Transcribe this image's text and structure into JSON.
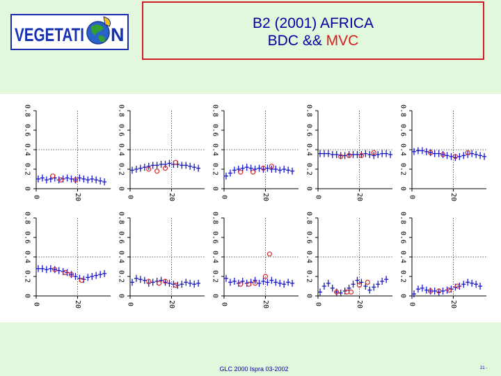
{
  "header": {
    "title_line1": "B2 (2001) AFRICA",
    "title_line2_prefix": "BDC && ",
    "title_line2_accent": "MVC",
    "logo_text_left": "VEGETATI",
    "logo_text_right": "N"
  },
  "footer": {
    "text": "GLC 2000 Ispra 03-2002",
    "page": "21 -"
  },
  "colors": {
    "bdc": "#1515c8",
    "mvc": "#d42a2a",
    "accent": "#d21a2a",
    "text": "#0000a0"
  },
  "chart_data": {
    "type": "scatter",
    "layout": "2 rows x 5 panels",
    "xlim": [
      0,
      36
    ],
    "ylim": [
      0,
      0.8
    ],
    "xticks": [
      "0",
      "20"
    ],
    "yticks": [
      "0",
      "0.2",
      "0.4",
      "0.6",
      "0.8"
    ],
    "vline_x": 20,
    "hline_y": 0.4,
    "series_names": [
      "BDC",
      "MVC"
    ],
    "panels": [
      {
        "bdc_x": [
          1,
          3,
          5,
          7,
          9,
          11,
          13,
          15,
          17,
          19,
          21,
          23,
          25,
          27,
          29,
          31,
          33
        ],
        "bdc_y": [
          0.1,
          0.11,
          0.09,
          0.1,
          0.11,
          0.09,
          0.1,
          0.11,
          0.1,
          0.09,
          0.11,
          0.1,
          0.09,
          0.1,
          0.09,
          0.08,
          0.07
        ],
        "mvc_x": [
          8,
          12,
          19
        ],
        "mvc_y": [
          0.13,
          0.09,
          0.09
        ]
      },
      {
        "bdc_x": [
          1,
          3,
          5,
          7,
          9,
          11,
          13,
          15,
          17,
          19,
          21,
          23,
          25,
          27,
          29,
          31,
          33
        ],
        "bdc_y": [
          0.19,
          0.2,
          0.21,
          0.22,
          0.23,
          0.24,
          0.24,
          0.25,
          0.25,
          0.26,
          0.25,
          0.25,
          0.24,
          0.24,
          0.23,
          0.22,
          0.21
        ],
        "mvc_x": [
          9,
          13,
          17,
          22
        ],
        "mvc_y": [
          0.2,
          0.18,
          0.21,
          0.27
        ]
      },
      {
        "bdc_x": [
          1,
          3,
          5,
          7,
          9,
          11,
          13,
          15,
          17,
          19,
          21,
          23,
          25,
          27,
          29,
          31,
          33
        ],
        "bdc_y": [
          0.13,
          0.16,
          0.19,
          0.2,
          0.21,
          0.22,
          0.21,
          0.2,
          0.21,
          0.2,
          0.21,
          0.2,
          0.2,
          0.19,
          0.2,
          0.19,
          0.18
        ],
        "mvc_x": [
          8,
          14,
          19,
          23
        ],
        "mvc_y": [
          0.17,
          0.17,
          0.21,
          0.23
        ]
      },
      {
        "bdc_x": [
          1,
          3,
          5,
          7,
          9,
          11,
          13,
          15,
          17,
          19,
          21,
          23,
          25,
          27,
          29,
          31,
          33,
          35
        ],
        "bdc_y": [
          0.36,
          0.36,
          0.36,
          0.35,
          0.35,
          0.34,
          0.34,
          0.35,
          0.35,
          0.35,
          0.35,
          0.36,
          0.35,
          0.34,
          0.35,
          0.36,
          0.36,
          0.35
        ],
        "mvc_x": [
          11,
          15,
          21,
          27
        ],
        "mvc_y": [
          0.33,
          0.34,
          0.34,
          0.37
        ]
      },
      {
        "bdc_x": [
          1,
          3,
          5,
          7,
          9,
          11,
          13,
          15,
          17,
          19,
          21,
          23,
          25,
          27,
          29,
          31,
          33,
          35
        ],
        "bdc_y": [
          0.38,
          0.39,
          0.39,
          0.38,
          0.37,
          0.36,
          0.36,
          0.35,
          0.34,
          0.33,
          0.32,
          0.33,
          0.34,
          0.35,
          0.36,
          0.35,
          0.34,
          0.33
        ],
        "mvc_x": [
          9,
          15,
          21,
          27
        ],
        "mvc_y": [
          0.37,
          0.35,
          0.33,
          0.37
        ]
      },
      {
        "bdc_x": [
          1,
          3,
          5,
          7,
          9,
          11,
          13,
          15,
          17,
          19,
          21,
          23,
          25,
          27,
          29,
          31,
          33
        ],
        "bdc_y": [
          0.28,
          0.28,
          0.27,
          0.28,
          0.27,
          0.26,
          0.25,
          0.24,
          0.22,
          0.2,
          0.18,
          0.17,
          0.19,
          0.2,
          0.21,
          0.22,
          0.23
        ],
        "mvc_x": [
          9,
          14,
          17,
          22
        ],
        "mvc_y": [
          0.27,
          0.24,
          0.22,
          0.16
        ]
      },
      {
        "bdc_x": [
          1,
          3,
          5,
          7,
          9,
          11,
          13,
          15,
          17,
          19,
          21,
          23,
          25,
          27,
          29,
          31,
          33
        ],
        "bdc_y": [
          0.14,
          0.18,
          0.17,
          0.16,
          0.13,
          0.14,
          0.15,
          0.16,
          0.14,
          0.13,
          0.12,
          0.11,
          0.12,
          0.14,
          0.13,
          0.12,
          0.13
        ],
        "mvc_x": [
          9,
          14,
          17,
          22
        ],
        "mvc_y": [
          0.15,
          0.13,
          0.15,
          0.11
        ]
      },
      {
        "bdc_x": [
          1,
          3,
          5,
          7,
          9,
          11,
          13,
          15,
          17,
          19,
          21,
          23,
          25,
          27,
          29,
          31,
          33
        ],
        "bdc_y": [
          0.18,
          0.14,
          0.15,
          0.13,
          0.15,
          0.13,
          0.14,
          0.16,
          0.13,
          0.15,
          0.14,
          0.16,
          0.14,
          0.13,
          0.12,
          0.14,
          0.13
        ],
        "mvc_x": [
          8,
          12,
          15,
          20,
          22
        ],
        "mvc_y": [
          0.12,
          0.12,
          0.13,
          0.2,
          0.43
        ]
      },
      {
        "bdc_x": [
          1,
          3,
          5,
          7,
          9,
          11,
          13,
          15,
          17,
          19,
          21,
          23,
          25,
          27,
          29,
          31,
          33
        ],
        "bdc_y": [
          0.04,
          0.1,
          0.13,
          0.08,
          0.04,
          0.03,
          0.05,
          0.08,
          0.12,
          0.16,
          0.14,
          0.1,
          0.06,
          0.09,
          0.12,
          0.15,
          0.17
        ],
        "mvc_x": [
          9,
          14,
          16,
          20,
          24
        ],
        "mvc_y": [
          0.04,
          0.04,
          0.04,
          0.11,
          0.14
        ]
      },
      {
        "bdc_x": [
          1,
          3,
          5,
          7,
          9,
          11,
          13,
          15,
          17,
          19,
          21,
          23,
          25,
          27,
          29,
          31,
          33
        ],
        "bdc_y": [
          0.02,
          0.07,
          0.08,
          0.06,
          0.05,
          0.05,
          0.04,
          0.05,
          0.06,
          0.07,
          0.09,
          0.1,
          0.12,
          0.14,
          0.13,
          0.12,
          0.1
        ],
        "mvc_x": [
          9,
          13,
          18,
          22
        ],
        "mvc_y": [
          0.05,
          0.05,
          0.06,
          0.1
        ]
      }
    ]
  }
}
